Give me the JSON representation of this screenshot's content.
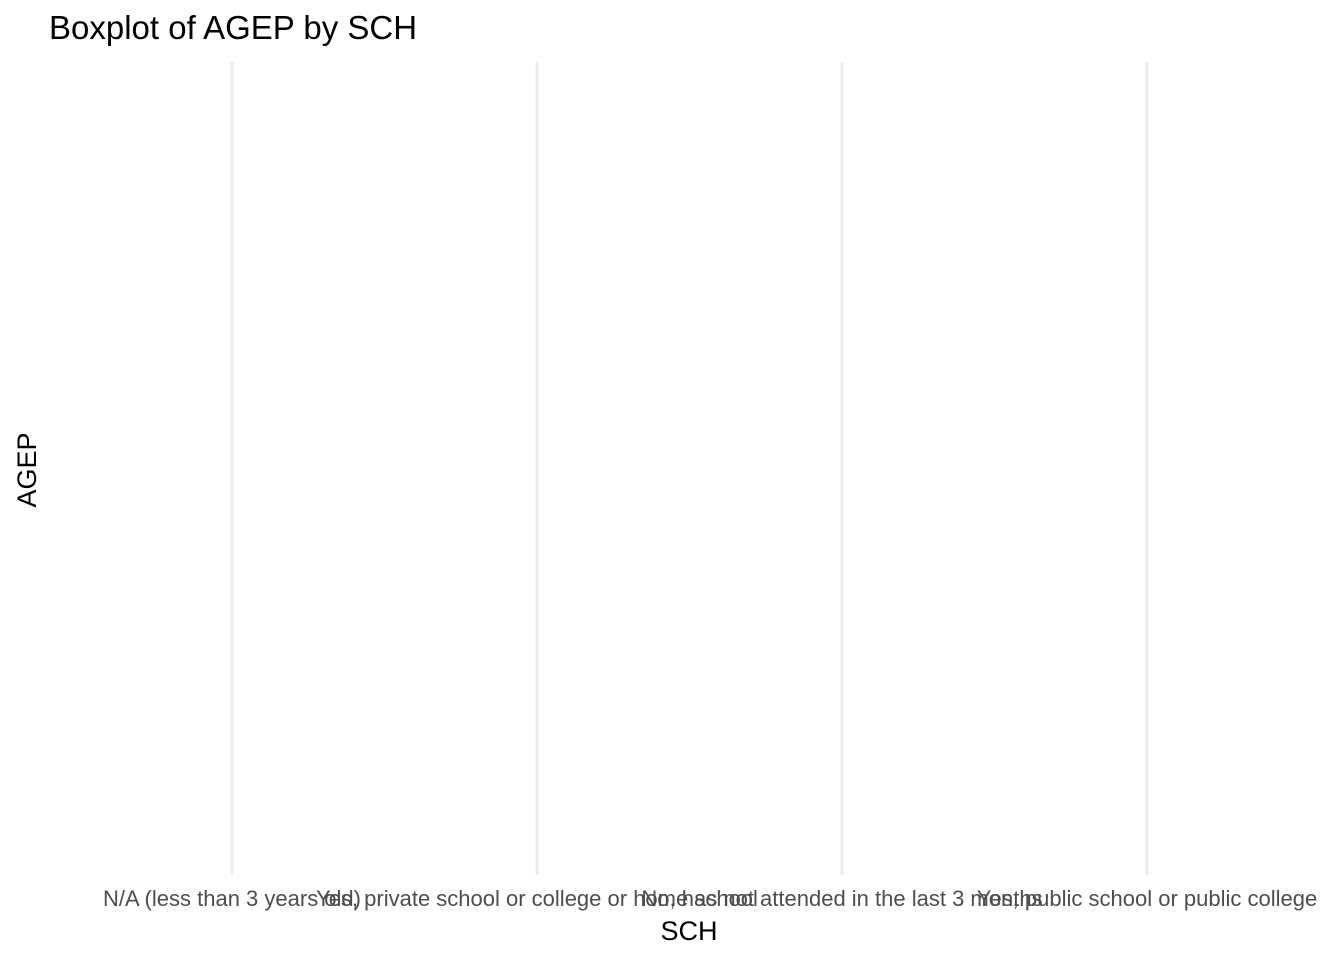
{
  "chart_data": {
    "type": "boxplot",
    "title": "Boxplot of AGEP by SCH",
    "xlabel": "SCH",
    "ylabel": "AGEP",
    "categories": [
      "N/A (less than 3 years old)",
      "Yes, private school or college or home school",
      "No, has not attended in the last 3 months",
      "Yes, public school or public college"
    ],
    "grid": {
      "x_major": true,
      "y_major": false
    },
    "legend": "none"
  }
}
